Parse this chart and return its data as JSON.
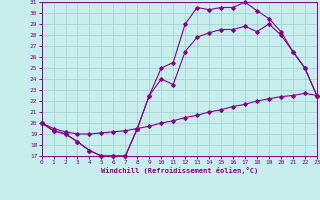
{
  "bg_color": "#c8eded",
  "line_color": "#880088",
  "grid_color": "#9dcfcf",
  "xlabel": "Windchill (Refroidissement éolien,°C)",
  "xlim": [
    0,
    23
  ],
  "ylim": [
    17,
    31
  ],
  "xticks": [
    0,
    1,
    2,
    3,
    4,
    5,
    6,
    7,
    8,
    9,
    10,
    11,
    12,
    13,
    14,
    15,
    16,
    17,
    18,
    19,
    20,
    21,
    22,
    23
  ],
  "yticks": [
    17,
    18,
    19,
    20,
    21,
    22,
    23,
    24,
    25,
    26,
    27,
    28,
    29,
    30,
    31
  ],
  "curve1_x": [
    0,
    1,
    2,
    3,
    4,
    5,
    6,
    7,
    8,
    9,
    10,
    11,
    12,
    13,
    14,
    15,
    16,
    17,
    18,
    19,
    20,
    21,
    22,
    23
  ],
  "curve1_y": [
    20.0,
    19.3,
    19.0,
    18.3,
    17.5,
    17.0,
    17.0,
    17.0,
    19.5,
    22.5,
    25.0,
    25.5,
    29.0,
    30.5,
    30.3,
    30.5,
    30.5,
    31.0,
    30.2,
    29.5,
    28.3,
    26.5,
    25.0,
    22.5
  ],
  "curve2_x": [
    0,
    1,
    2,
    3,
    4,
    5,
    6,
    7,
    8,
    9,
    10,
    11,
    12,
    13,
    14,
    15,
    16,
    17,
    18,
    19,
    20,
    21,
    22,
    23
  ],
  "curve2_y": [
    20.0,
    19.3,
    19.0,
    18.3,
    17.5,
    17.0,
    17.0,
    17.0,
    19.5,
    22.5,
    24.0,
    23.5,
    26.5,
    27.8,
    28.2,
    28.5,
    28.5,
    28.8,
    28.3,
    29.0,
    28.0,
    26.5,
    25.0,
    22.5
  ],
  "curve3_x": [
    0,
    1,
    2,
    3,
    4,
    5,
    6,
    7,
    8,
    9,
    10,
    11,
    12,
    13,
    14,
    15,
    16,
    17,
    18,
    19,
    20,
    21,
    22,
    23
  ],
  "curve3_y": [
    20.0,
    19.5,
    19.2,
    19.0,
    19.0,
    19.1,
    19.2,
    19.3,
    19.5,
    19.7,
    20.0,
    20.2,
    20.5,
    20.7,
    21.0,
    21.2,
    21.5,
    21.7,
    22.0,
    22.2,
    22.4,
    22.5,
    22.7,
    22.5
  ]
}
